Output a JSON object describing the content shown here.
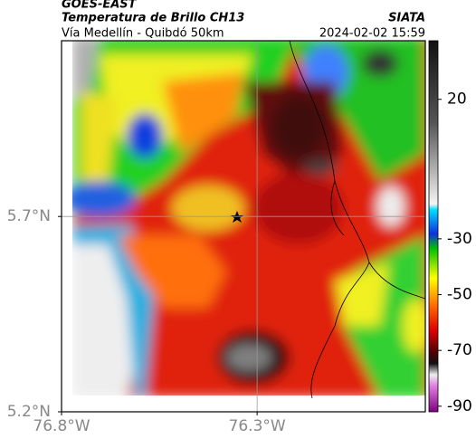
{
  "header": {
    "title": "GOES-EAST",
    "subtitle": "Temperatura de Brillo CH13",
    "source": "SIATA",
    "route": "Vía Medellín - Quibdó 50km",
    "timestamp": "2024-02-02 15:59"
  },
  "map": {
    "xlim": [
      -76.8,
      -75.87
    ],
    "ylim": [
      5.2,
      6.15
    ],
    "xticks": [
      {
        "value": -76.8,
        "label": "76.8°W"
      },
      {
        "value": -76.3,
        "label": "76.3°W"
      }
    ],
    "yticks": [
      {
        "value": 5.2,
        "label": "5.2°N"
      },
      {
        "value": 5.7,
        "label": "5.7°N"
      }
    ],
    "grid": true
  },
  "colorbar": {
    "lim": [
      -92,
      41
    ],
    "ticks": [
      20,
      -30,
      -50,
      -70,
      -90
    ]
  }
}
